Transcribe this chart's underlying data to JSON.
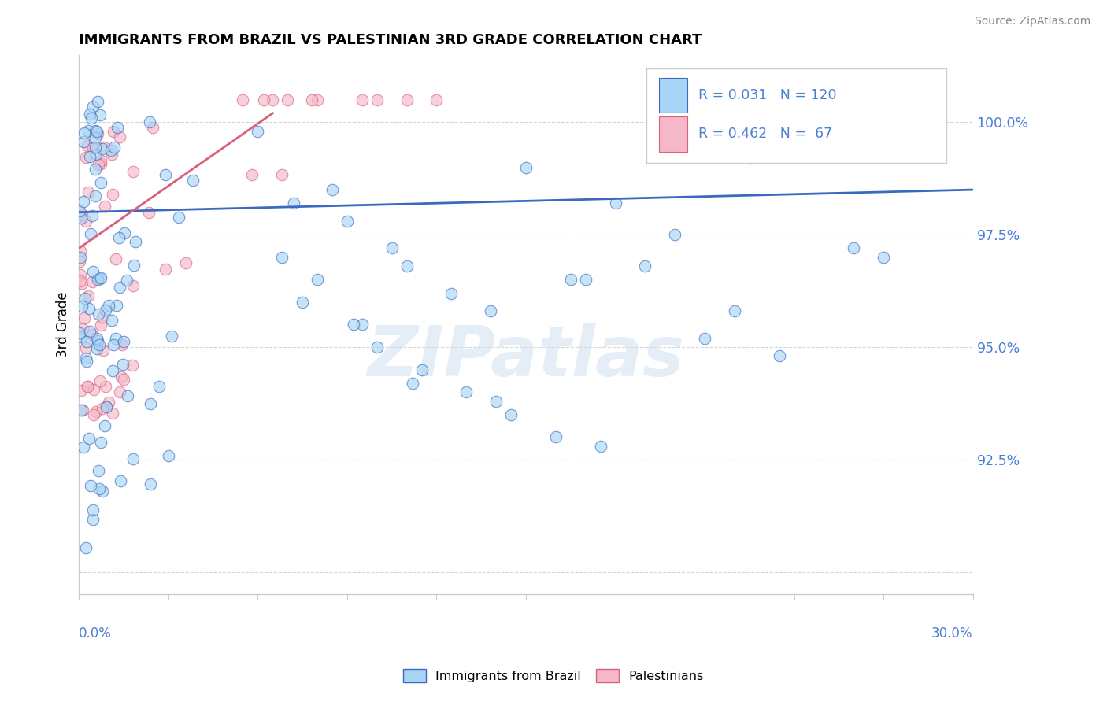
{
  "title": "IMMIGRANTS FROM BRAZIL VS PALESTINIAN 3RD GRADE CORRELATION CHART",
  "source": "Source: ZipAtlas.com",
  "ylabel": "3rd Grade",
  "xmin": 0.0,
  "xmax": 30.0,
  "ymin": 89.5,
  "ymax": 101.5,
  "legend_brazil": "Immigrants from Brazil",
  "legend_palestinians": "Palestinians",
  "R_brazil": 0.031,
  "N_brazil": 120,
  "R_palestinians": 0.462,
  "N_palestinians": 67,
  "color_brazil": "#a8d4f5",
  "color_palestinians": "#f4b8c8",
  "color_brazil_line": "#3a6abf",
  "color_palestinians_line": "#d9607a",
  "color_text_blue": "#4a7fd4",
  "color_axis_blue": "#4a7fd4",
  "brazil_trend_y0": 98.0,
  "brazil_trend_y1": 98.5,
  "pal_trend_y0": 97.2,
  "pal_trend_y1": 100.2,
  "pal_trend_x1": 6.5
}
